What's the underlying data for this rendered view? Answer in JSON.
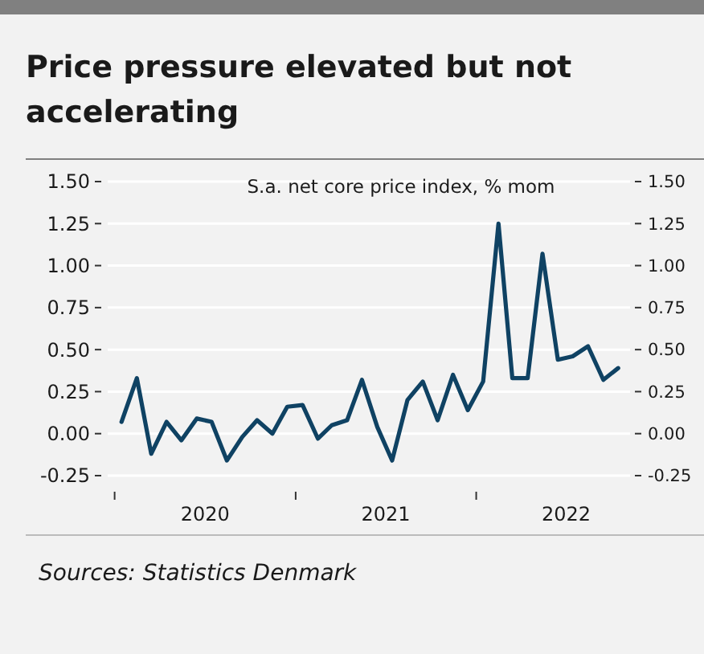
{
  "chart_data": {
    "type": "line",
    "title": "Price pressure elevated but not accelerating",
    "subtitle": "S.a. net core price index, % mom",
    "annotations": [
      "Sources: Statistics Denmark"
    ],
    "x": [
      "2020-01-15",
      "2020-02-15",
      "2020-03-15",
      "2020-04-15",
      "2020-05-15",
      "2020-06-15",
      "2020-07-15",
      "2020-08-15",
      "2020-09-15",
      "2020-10-15",
      "2020-11-15",
      "2020-12-15",
      "2021-01-15",
      "2021-02-15",
      "2021-03-15",
      "2021-04-15",
      "2021-05-15",
      "2021-06-15",
      "2021-07-15",
      "2021-08-15",
      "2021-09-15",
      "2021-10-15",
      "2021-11-15",
      "2021-12-15",
      "2022-01-15",
      "2022-02-15",
      "2022-03-15",
      "2022-04-15",
      "2022-05-15",
      "2022-06-15",
      "2022-07-15",
      "2022-08-15",
      "2022-09-15",
      "2022-10-15"
    ],
    "series": [
      {
        "color": "#0f4263",
        "values": [
          0.07,
          0.33,
          -0.12,
          0.07,
          -0.04,
          0.09,
          0.07,
          -0.16,
          -0.02,
          0.08,
          0.0,
          0.16,
          0.17,
          -0.03,
          0.05,
          0.08,
          0.32,
          0.04,
          -0.16,
          0.2,
          0.31,
          0.08,
          0.35,
          0.14,
          0.31,
          1.25,
          0.33,
          0.33,
          1.07,
          0.44,
          0.46,
          0.52,
          0.32,
          0.39
        ]
      }
    ],
    "xlim": [
      "2019-12-18",
      "2022-11-08"
    ],
    "xticks": [
      {
        "value": "2020-01-01",
        "label": null
      },
      {
        "value": "2020-07-02",
        "label": "2020"
      },
      {
        "value": "2021-01-01",
        "label": null
      },
      {
        "value": "2021-07-02",
        "label": "2021"
      },
      {
        "value": "2022-01-01",
        "label": null
      },
      {
        "value": "2022-07-02",
        "label": "2022"
      }
    ],
    "ylim": [
      -0.25,
      1.5
    ],
    "yticks": [
      {
        "value": -0.25,
        "label": "-0.25"
      },
      {
        "value": 0,
        "label": "0.00"
      },
      {
        "value": 0.25,
        "label": "0.25"
      },
      {
        "value": 0.5,
        "label": "0.50"
      },
      {
        "value": 0.75,
        "label": "0.75"
      },
      {
        "value": 1,
        "label": "1.00"
      },
      {
        "value": 1.25,
        "label": "1.25"
      },
      {
        "value": 1.5,
        "label": "1.50"
      }
    ],
    "y2lim": [
      -0.25,
      1.5
    ],
    "y2ticks": [
      {
        "value": -0.25,
        "label": "-0.25"
      },
      {
        "value": 0,
        "label": "0.00"
      },
      {
        "value": 0.25,
        "label": "0.25"
      },
      {
        "value": 0.5,
        "label": "0.50"
      },
      {
        "value": 0.75,
        "label": "0.75"
      },
      {
        "value": 1,
        "label": "1.00"
      },
      {
        "value": 1.25,
        "label": "1.25"
      },
      {
        "value": 1.5,
        "label": "1.50"
      }
    ],
    "grid": "y",
    "line_style": "solid",
    "marker": "none"
  }
}
